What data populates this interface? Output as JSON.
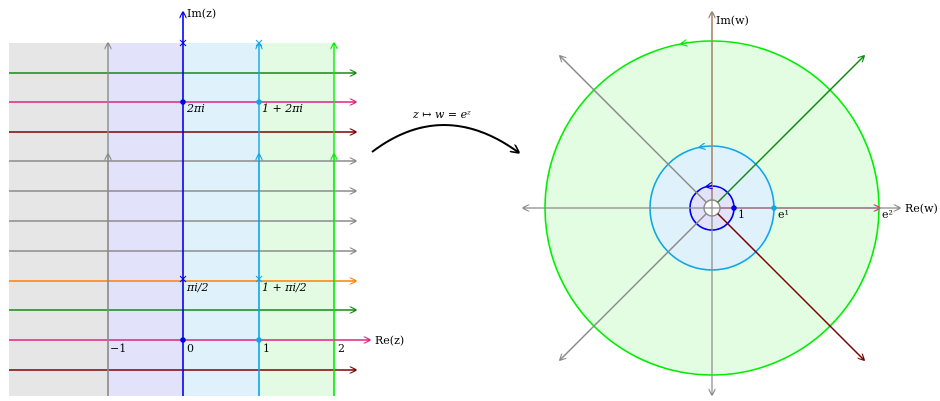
{
  "colors": {
    "gray": "#8a8a8a",
    "blue": "#0000ee",
    "cyan": "#0ea5e9",
    "green": "#00ee00",
    "darkgreen": "#118811",
    "magenta": "#e0207f",
    "maroon": "#7a0000",
    "orange": "#ff7f00",
    "strip_gray": "#e6e6e6",
    "strip_purple": "#e2e2fb",
    "strip_cyan": "#dff1fb",
    "strip_green": "#e2fbe2",
    "disk_green": "#e2fde2",
    "disk_cyan": "#dff1fb"
  },
  "left_plane": {
    "axis_x_label": "Re(z)",
    "axis_y_label": "Im(z)",
    "tick_neg1": "−1",
    "tick_0": "0",
    "tick_1": "1",
    "tick_2": "2",
    "label_2pi_i": "2πi",
    "label_1_plus_2pi_i": "1 + 2πi",
    "label_pi_i_over_2": "πi/2",
    "label_1_plus_pi_i_over_2": "1 + πi/2"
  },
  "mapping": {
    "label": "z ↦ w = eᶻ"
  },
  "right_plane": {
    "axis_x_label": "Re(w)",
    "axis_y_label": "Im(w)",
    "label_1": "1",
    "label_e1": "e¹",
    "label_e2": "e²"
  }
}
